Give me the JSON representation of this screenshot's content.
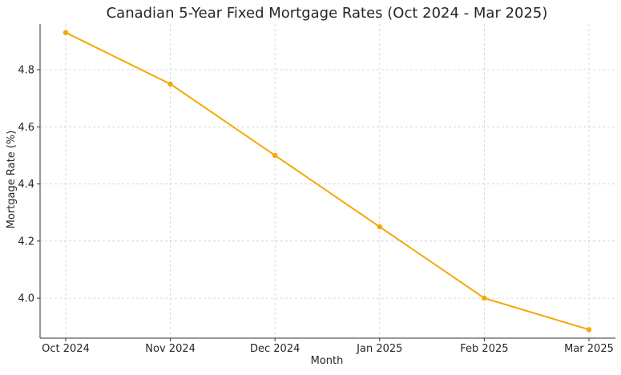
{
  "chart_data": {
    "type": "line",
    "title": "Canadian 5-Year Fixed Mortgage Rates (Oct 2024 - Mar 2025)",
    "xlabel": "Month",
    "ylabel": "Mortgage Rate (%)",
    "categories": [
      "Oct 2024",
      "Nov 2024",
      "Dec 2024",
      "Jan 2025",
      "Feb 2025",
      "Mar 2025"
    ],
    "series": [
      {
        "values": [
          4.93,
          4.75,
          4.5,
          4.25,
          4.0,
          3.89
        ],
        "color": "#f5a800"
      }
    ],
    "ylim": [
      3.86,
      4.96
    ],
    "yticks": [
      4.0,
      4.2,
      4.4,
      4.6,
      4.8
    ],
    "ytick_labels": [
      "4.0",
      "4.2",
      "4.4",
      "4.6",
      "4.8"
    ],
    "grid": true,
    "grid_style": "dashed",
    "legend": "none"
  }
}
